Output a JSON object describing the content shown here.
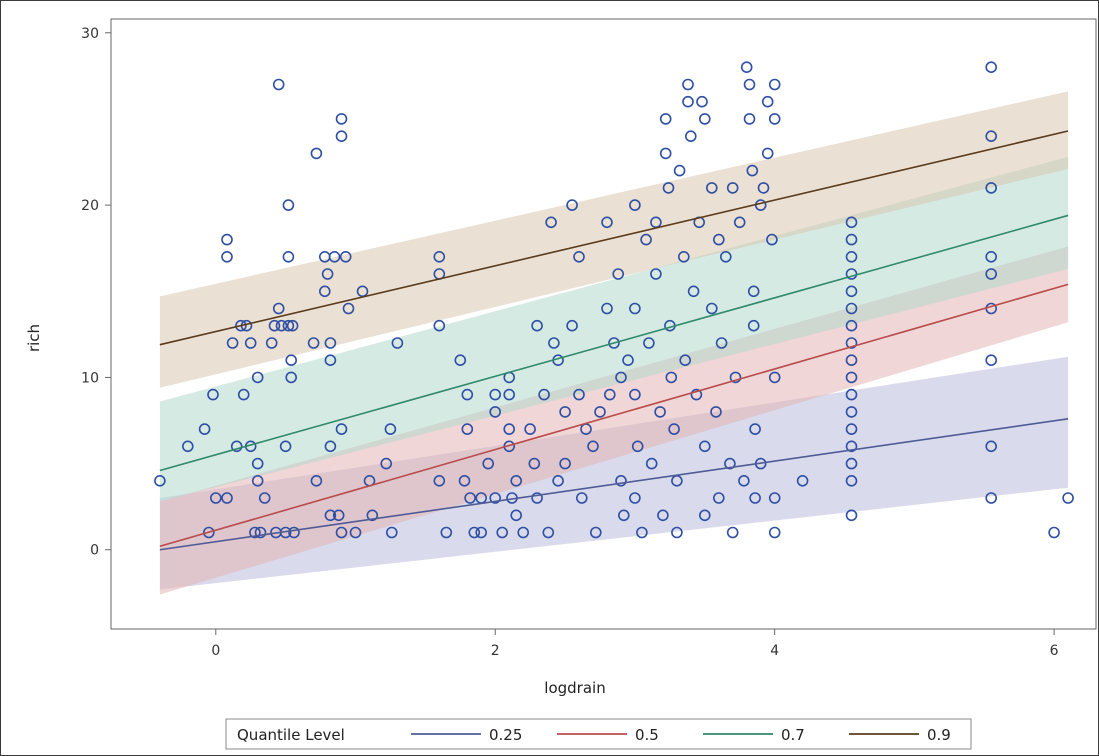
{
  "chart_data": {
    "type": "scatter",
    "title": "",
    "xlabel": "logdrain",
    "ylabel": "rich",
    "xlim": [
      -0.75,
      6.3
    ],
    "ylim": [
      -4.6,
      30.8
    ],
    "x_ticks": [
      0,
      2,
      4,
      6
    ],
    "y_ticks": [
      0,
      10,
      20,
      30
    ],
    "grid": false,
    "legend": {
      "title": "Quantile Level",
      "placement": "bottom",
      "entries": [
        "0.25",
        "0.5",
        "0.7",
        "0.9"
      ]
    },
    "series": [
      {
        "name": "0.25",
        "type": "line",
        "color": "#4e5b96",
        "band_color": "#b9bedc",
        "x": [
          -0.4,
          6.1
        ],
        "y": [
          0.0,
          7.6
        ],
        "band_lower": [
          -2.3,
          3.6
        ],
        "band_upper": [
          3.0,
          11.2
        ]
      },
      {
        "name": "0.5",
        "type": "line",
        "color": "#b94b4b",
        "band_color": "#e3b4b4",
        "x": [
          -0.4,
          6.1
        ],
        "y": [
          0.2,
          15.4
        ],
        "band_lower": [
          -2.6,
          13.2
        ],
        "band_upper": [
          2.8,
          17.6
        ]
      },
      {
        "name": "0.7",
        "type": "line",
        "color": "#2f8a6a",
        "band_color": "#b5d8ce",
        "x": [
          -0.4,
          6.1
        ],
        "y": [
          4.6,
          19.4
        ],
        "band_lower": [
          2.8,
          16.3
        ],
        "band_upper": [
          8.6,
          22.8
        ]
      },
      {
        "name": "0.9",
        "type": "line",
        "color": "#5a3b1c",
        "band_color": "#d8c7b0",
        "x": [
          -0.4,
          6.1
        ],
        "y": [
          11.9,
          24.3
        ],
        "band_lower": [
          9.4,
          22.1
        ],
        "band_upper": [
          14.7,
          26.6
        ]
      }
    ],
    "points_color": "#2e4fa3",
    "points": [
      [
        -0.4,
        4
      ],
      [
        -0.2,
        6
      ],
      [
        -0.05,
        1
      ],
      [
        -0.08,
        7
      ],
      [
        -0.02,
        9
      ],
      [
        0.0,
        3
      ],
      [
        0.08,
        3
      ],
      [
        0.08,
        18
      ],
      [
        0.08,
        17
      ],
      [
        0.12,
        12
      ],
      [
        0.15,
        6
      ],
      [
        0.18,
        13
      ],
      [
        0.2,
        9
      ],
      [
        0.22,
        13
      ],
      [
        0.25,
        12
      ],
      [
        0.25,
        6
      ],
      [
        0.28,
        1
      ],
      [
        0.3,
        10
      ],
      [
        0.3,
        5
      ],
      [
        0.3,
        4
      ],
      [
        0.32,
        1
      ],
      [
        0.35,
        3
      ],
      [
        0.4,
        12
      ],
      [
        0.42,
        13
      ],
      [
        0.43,
        1
      ],
      [
        0.45,
        27
      ],
      [
        0.45,
        14
      ],
      [
        0.47,
        13
      ],
      [
        0.5,
        1
      ],
      [
        0.5,
        6
      ],
      [
        0.52,
        13
      ],
      [
        0.52,
        20
      ],
      [
        0.52,
        17
      ],
      [
        0.54,
        11
      ],
      [
        0.54,
        10
      ],
      [
        0.56,
        1
      ],
      [
        0.55,
        13
      ],
      [
        0.7,
        12
      ],
      [
        0.72,
        23
      ],
      [
        0.72,
        4
      ],
      [
        0.78,
        17
      ],
      [
        0.78,
        15
      ],
      [
        0.8,
        16
      ],
      [
        0.82,
        12
      ],
      [
        0.82,
        11
      ],
      [
        0.82,
        6
      ],
      [
        0.82,
        2
      ],
      [
        0.85,
        17
      ],
      [
        0.88,
        2
      ],
      [
        0.9,
        1
      ],
      [
        0.9,
        25
      ],
      [
        0.9,
        24
      ],
      [
        0.9,
        7
      ],
      [
        0.93,
        17
      ],
      [
        0.95,
        14
      ],
      [
        1.0,
        1
      ],
      [
        1.05,
        15
      ],
      [
        1.1,
        4
      ],
      [
        1.12,
        2
      ],
      [
        1.22,
        5
      ],
      [
        1.25,
        7
      ],
      [
        1.26,
        1
      ],
      [
        1.3,
        12
      ],
      [
        1.6,
        17
      ],
      [
        1.6,
        16
      ],
      [
        1.6,
        13
      ],
      [
        1.6,
        4
      ],
      [
        1.65,
        1
      ],
      [
        1.75,
        11
      ],
      [
        1.78,
        4
      ],
      [
        1.8,
        9
      ],
      [
        1.8,
        7
      ],
      [
        1.82,
        3
      ],
      [
        1.85,
        1
      ],
      [
        1.9,
        3
      ],
      [
        1.9,
        1
      ],
      [
        1.95,
        5
      ],
      [
        2.0,
        9
      ],
      [
        2.0,
        8
      ],
      [
        2.0,
        3
      ],
      [
        2.05,
        1
      ],
      [
        2.1,
        10
      ],
      [
        2.1,
        9
      ],
      [
        2.1,
        7
      ],
      [
        2.1,
        6
      ],
      [
        2.12,
        3
      ],
      [
        2.15,
        4
      ],
      [
        2.15,
        2
      ],
      [
        2.2,
        1
      ],
      [
        2.25,
        7
      ],
      [
        2.28,
        5
      ],
      [
        2.3,
        13
      ],
      [
        2.3,
        3
      ],
      [
        2.35,
        9
      ],
      [
        2.38,
        1
      ],
      [
        2.4,
        19
      ],
      [
        2.42,
        12
      ],
      [
        2.45,
        11
      ],
      [
        2.45,
        4
      ],
      [
        2.5,
        8
      ],
      [
        2.5,
        5
      ],
      [
        2.55,
        20
      ],
      [
        2.55,
        13
      ],
      [
        2.6,
        17
      ],
      [
        2.6,
        9
      ],
      [
        2.62,
        3
      ],
      [
        2.65,
        7
      ],
      [
        2.7,
        6
      ],
      [
        2.72,
        1
      ],
      [
        2.75,
        8
      ],
      [
        2.8,
        19
      ],
      [
        2.8,
        14
      ],
      [
        2.82,
        9
      ],
      [
        2.85,
        12
      ],
      [
        2.88,
        16
      ],
      [
        2.9,
        10
      ],
      [
        2.9,
        4
      ],
      [
        2.92,
        2
      ],
      [
        2.95,
        11
      ],
      [
        3.0,
        20
      ],
      [
        3.0,
        14
      ],
      [
        3.0,
        9
      ],
      [
        3.0,
        3
      ],
      [
        3.02,
        6
      ],
      [
        3.05,
        1
      ],
      [
        3.08,
        18
      ],
      [
        3.1,
        12
      ],
      [
        3.12,
        5
      ],
      [
        3.15,
        19
      ],
      [
        3.15,
        16
      ],
      [
        3.18,
        8
      ],
      [
        3.2,
        2
      ],
      [
        3.22,
        25
      ],
      [
        3.22,
        23
      ],
      [
        3.24,
        21
      ],
      [
        3.25,
        13
      ],
      [
        3.26,
        10
      ],
      [
        3.28,
        7
      ],
      [
        3.3,
        4
      ],
      [
        3.3,
        1
      ],
      [
        3.32,
        22
      ],
      [
        3.35,
        17
      ],
      [
        3.36,
        11
      ],
      [
        3.38,
        27
      ],
      [
        3.38,
        26
      ],
      [
        3.4,
        24
      ],
      [
        3.42,
        15
      ],
      [
        3.44,
        9
      ],
      [
        3.46,
        19
      ],
      [
        3.48,
        26
      ],
      [
        3.5,
        25
      ],
      [
        3.5,
        6
      ],
      [
        3.5,
        2
      ],
      [
        3.55,
        21
      ],
      [
        3.55,
        14
      ],
      [
        3.58,
        8
      ],
      [
        3.6,
        18
      ],
      [
        3.6,
        3
      ],
      [
        3.62,
        12
      ],
      [
        3.65,
        17
      ],
      [
        3.68,
        5
      ],
      [
        3.7,
        21
      ],
      [
        3.7,
        1
      ],
      [
        3.72,
        10
      ],
      [
        3.75,
        19
      ],
      [
        3.78,
        4
      ],
      [
        3.8,
        28
      ],
      [
        3.82,
        27
      ],
      [
        3.82,
        25
      ],
      [
        3.84,
        22
      ],
      [
        3.85,
        15
      ],
      [
        3.85,
        13
      ],
      [
        3.86,
        7
      ],
      [
        3.86,
        3
      ],
      [
        3.9,
        20
      ],
      [
        3.9,
        5
      ],
      [
        3.92,
        21
      ],
      [
        3.95,
        26
      ],
      [
        3.95,
        23
      ],
      [
        3.98,
        18
      ],
      [
        4.0,
        27
      ],
      [
        4.0,
        25
      ],
      [
        4.0,
        10
      ],
      [
        4.0,
        3
      ],
      [
        4.0,
        1
      ],
      [
        4.2,
        4
      ],
      [
        4.55,
        19
      ],
      [
        4.55,
        18
      ],
      [
        4.55,
        17
      ],
      [
        4.55,
        16
      ],
      [
        4.55,
        15
      ],
      [
        4.55,
        14
      ],
      [
        4.55,
        13
      ],
      [
        4.55,
        12
      ],
      [
        4.55,
        11
      ],
      [
        4.55,
        10
      ],
      [
        4.55,
        9
      ],
      [
        4.55,
        8
      ],
      [
        4.55,
        7
      ],
      [
        4.55,
        6
      ],
      [
        4.55,
        5
      ],
      [
        4.55,
        4
      ],
      [
        4.55,
        2
      ],
      [
        5.55,
        28
      ],
      [
        5.55,
        24
      ],
      [
        5.55,
        21
      ],
      [
        5.55,
        17
      ],
      [
        5.55,
        16
      ],
      [
        5.55,
        14
      ],
      [
        5.55,
        11
      ],
      [
        5.55,
        6
      ],
      [
        5.55,
        3
      ],
      [
        6.0,
        1
      ],
      [
        6.1,
        3
      ]
    ]
  }
}
